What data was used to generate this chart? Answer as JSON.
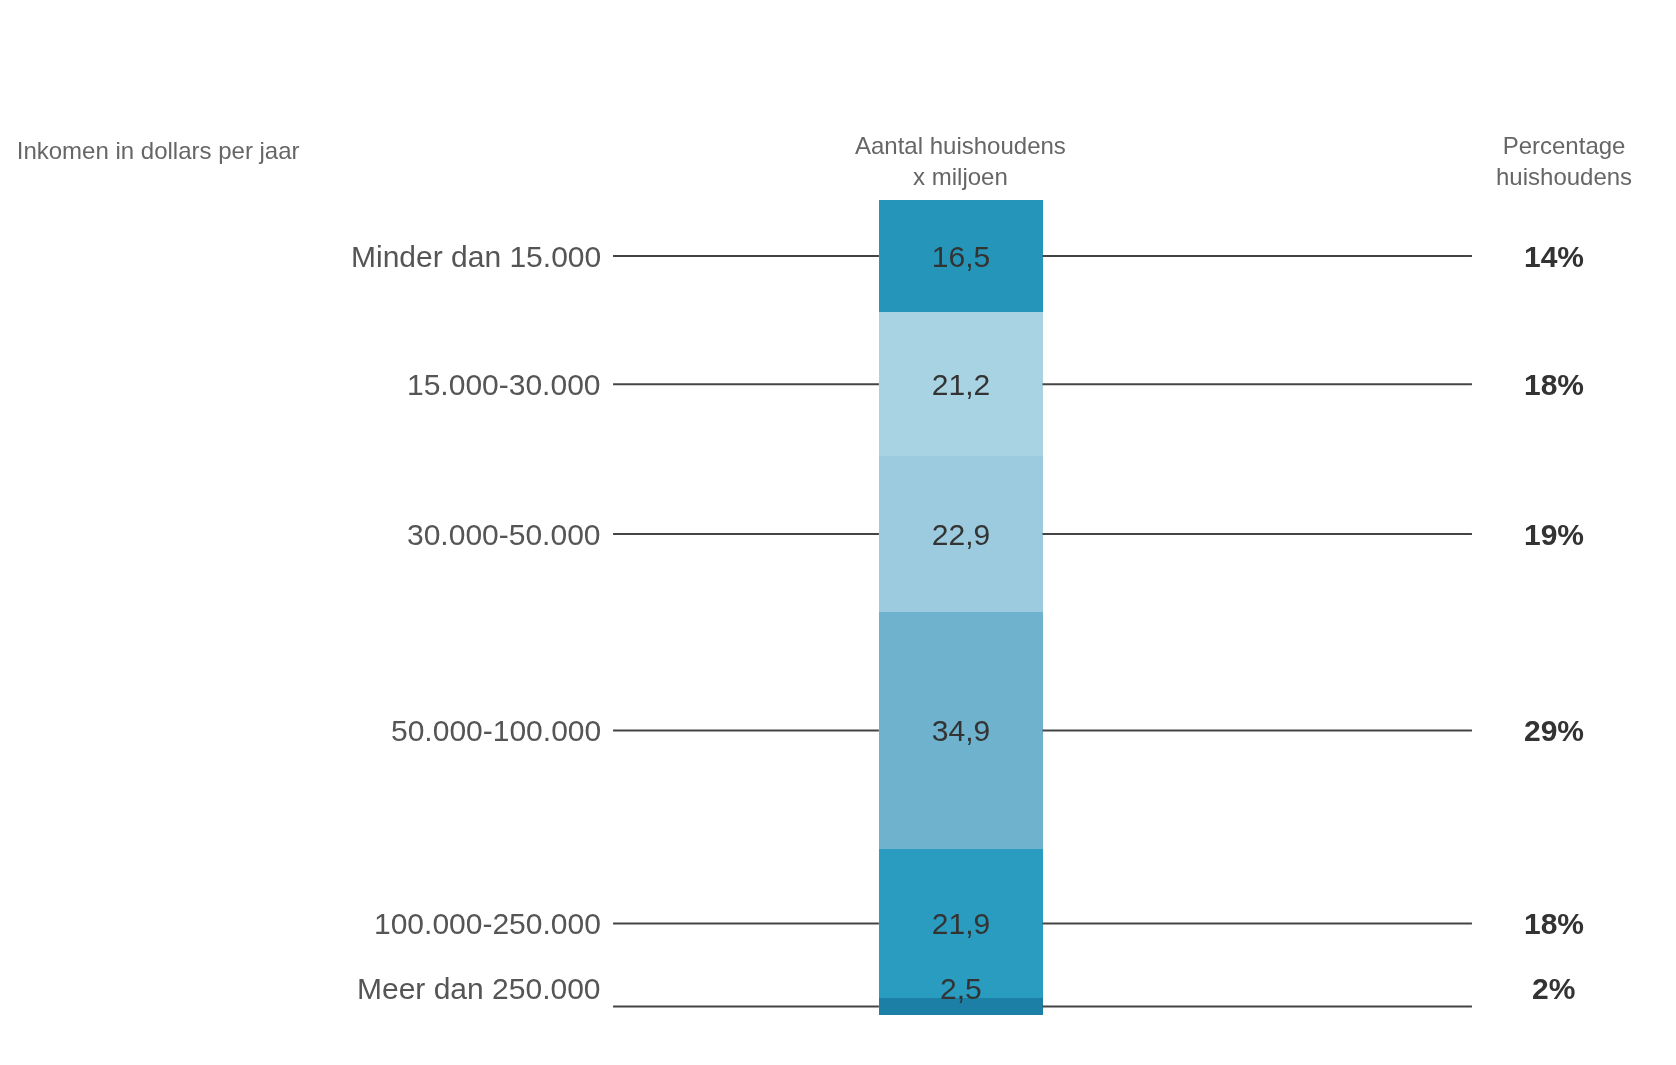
{
  "chart_data": {
    "type": "bar",
    "stacked": true,
    "title": "Inkomen in dollars per jaar",
    "categories": [
      null
    ],
    "series": [
      {
        "name": "Meer dan 250.000",
        "color": "#1c7fa6",
        "values": [
          2.5
        ],
        "value_labels": [
          "2,5"
        ]
      },
      {
        "name": "100.000-250.000",
        "color": "#2a9cc0",
        "values": [
          21.9
        ],
        "value_labels": [
          "21,9"
        ]
      },
      {
        "name": "50.000-100.000",
        "color": "#6fb2cd",
        "values": [
          34.9
        ],
        "value_labels": [
          "34,9"
        ]
      },
      {
        "name": "30.000-50.000",
        "color": "#9ccbdf",
        "values": [
          22.9
        ],
        "value_labels": [
          "22,9"
        ]
      },
      {
        "name": "15.000-30.000",
        "color": "#a8d3e3",
        "values": [
          21.2
        ],
        "value_labels": [
          "21,2"
        ]
      },
      {
        "name": "Minder dan 15.000",
        "color": "#2596ba",
        "values": [
          16.5
        ],
        "value_labels": [
          "16,5"
        ]
      }
    ],
    "annotations": [
      "Aantal huishoudens x miljoen",
      "Percentage huishoudens",
      "2%",
      "18%",
      "29%",
      "19%",
      "18%",
      "14%"
    ]
  }
}
